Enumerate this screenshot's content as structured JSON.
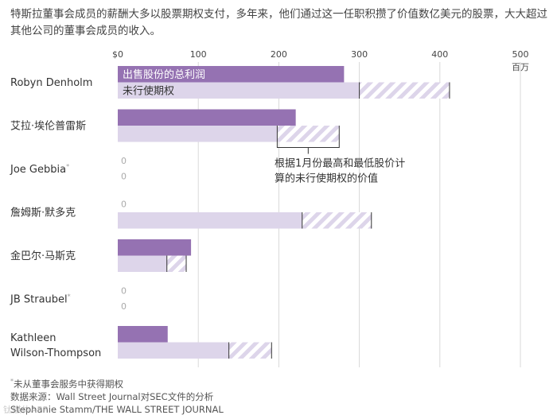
{
  "headline": "特斯拉董事会成员的薪酬大多以股票期权支付，多年来，他们通过这一任职积攒了价值数亿美元的股票，大大超过其他公司的董事会成员的收入。",
  "colors": {
    "sold": "#9572b2",
    "unexercised": "#ddd5ea",
    "hatch": "#b9aacd",
    "grid": "#d9d9d9",
    "axis": "#222222"
  },
  "chart_data": {
    "type": "bar",
    "orientation": "horizontal",
    "unit": "百万",
    "xlim": [
      0,
      500
    ],
    "ticks": [
      {
        "value": 0,
        "label": "$0"
      },
      {
        "value": 100,
        "label": "100"
      },
      {
        "value": 200,
        "label": "200"
      },
      {
        "value": 300,
        "label": "300"
      },
      {
        "value": 400,
        "label": "400"
      },
      {
        "value": 500,
        "label": "500"
      }
    ],
    "series": [
      {
        "name": "出售股份的总利润",
        "key": "sold"
      },
      {
        "name": "未行使期权",
        "key": "unexercised"
      }
    ],
    "categories": [
      {
        "name": "Robyn Denholm",
        "footnote": false,
        "sold": 281,
        "unexercised": 300,
        "unexercised_high": 412
      },
      {
        "name": "艾拉·埃伦普雷斯",
        "footnote": false,
        "sold": 221,
        "unexercised": 198,
        "unexercised_high": 275
      },
      {
        "name": "Joe Gebbia",
        "footnote": true,
        "sold": 0,
        "unexercised": 0,
        "unexercised_high": 0
      },
      {
        "name": "詹姆斯·默多克",
        "footnote": false,
        "sold": 0,
        "unexercised": 229,
        "unexercised_high": 315
      },
      {
        "name": "金巴尔·马斯克",
        "footnote": false,
        "sold": 91,
        "unexercised": 61,
        "unexercised_high": 85
      },
      {
        "name": "JB Straubel",
        "footnote": true,
        "sold": 0,
        "unexercised": 0,
        "unexercised_high": 0
      },
      {
        "name": "Kathleen\nWilson-Thompson",
        "footnote": false,
        "sold": 62,
        "unexercised": 138,
        "unexercised_high": 191
      }
    ],
    "annotation": "根据1月份最高和最低股价计\n算的未行使期权的价值",
    "zero_label": "0"
  },
  "footer": {
    "footnote_mark": "*",
    "footnote": "未从董事会服务中获得期权",
    "source": "数据来源：Wall Street Journal对SEC文件的分析",
    "credit": "Stephanie Stamm/THE WALL STREET JOURNAL",
    "watermark": "钛媒体APP"
  }
}
